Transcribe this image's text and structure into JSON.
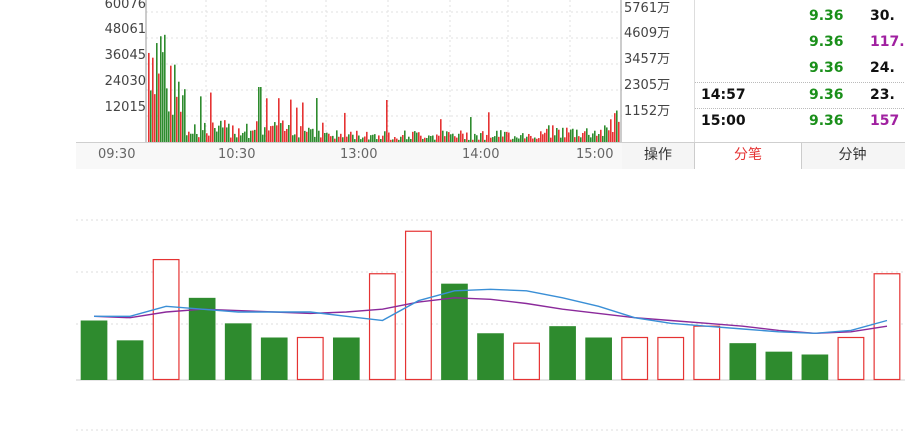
{
  "volume_panel": {
    "y_left_ticks": [
      "60076",
      "48061",
      "36045",
      "24030",
      "12015"
    ],
    "y_right_ticks": [
      "5761万",
      "4609万",
      "3457万",
      "2305万",
      "1152万"
    ],
    "time_labels": [
      "09:30",
      "10:30",
      "13:00",
      "14:00",
      "15:00"
    ]
  },
  "ticks": [
    {
      "time": "",
      "price": "9.36",
      "volume": "30.",
      "vol_color": "#111111"
    },
    {
      "time": "",
      "price": "9.36",
      "volume": "117.",
      "vol_color": "#a020a0"
    },
    {
      "time": "",
      "price": "9.36",
      "volume": "24.",
      "vol_color": "#111111"
    },
    {
      "time": "14:57",
      "price": "9.36",
      "volume": "23.",
      "vol_color": "#111111"
    },
    {
      "time": "15:00",
      "price": "9.36",
      "volume": "157",
      "vol_color": "#a020a0"
    }
  ],
  "tabs": {
    "operate": "操作",
    "tick_detail": "分笔",
    "minute": "分钟"
  },
  "colors": {
    "up": "#e53333",
    "down": "#2e8b2e",
    "ma_purple": "#8b2a9b",
    "ma_blue": "#3a8fd6"
  },
  "chart_data": {
    "type": "bar",
    "series": [
      {
        "values": [
          42,
          28,
          85,
          58,
          40,
          30,
          30,
          30,
          75,
          105,
          68,
          33,
          26,
          38,
          30,
          30,
          30,
          38,
          26,
          20,
          18,
          30,
          75
        ],
        "direction": [
          "down",
          "down",
          "up",
          "down",
          "down",
          "down",
          "up",
          "down",
          "up",
          "up",
          "down",
          "down",
          "up",
          "down",
          "down",
          "up",
          "up",
          "up",
          "down",
          "down",
          "down",
          "up",
          "up"
        ]
      }
    ],
    "ma_lines": [
      {
        "values": [
          45,
          44,
          48,
          50,
          49,
          48,
          47,
          48,
          50,
          55,
          58,
          57,
          54,
          50,
          47,
          44,
          42,
          40,
          38,
          35,
          33,
          34,
          38
        ]
      },
      {
        "values": [
          45,
          45,
          52,
          50,
          48,
          48,
          48,
          45,
          42,
          56,
          63,
          64,
          63,
          58,
          52,
          44,
          40,
          38,
          36,
          34,
          33,
          35,
          42
        ]
      }
    ]
  }
}
